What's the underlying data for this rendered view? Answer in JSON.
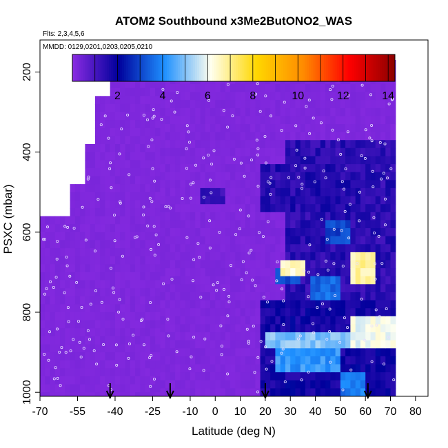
{
  "chart_data": {
    "type": "heatmap",
    "title": "ATOM2 Southbound x3Me2ButONO2_WAS",
    "subtitle_flights": "Flts: 2,3,4,5,6",
    "subtitle_dates": "MMDD: 0129,0201,0203,0205,0210",
    "xlabel": "Latitude (deg N)",
    "ylabel": "PSXC (mbar)",
    "xlim": [
      -70,
      85
    ],
    "ylim": [
      1010,
      120
    ],
    "x_ticks": [
      -70,
      -55,
      -40,
      -25,
      -10,
      0,
      10,
      20,
      30,
      40,
      50,
      60,
      70,
      80
    ],
    "y_ticks": [
      200,
      400,
      600,
      800,
      1000
    ],
    "colorbar": {
      "min": 0,
      "max": 14.3,
      "ticks": [
        2,
        4,
        6,
        8,
        10,
        12,
        14
      ],
      "colors": [
        "#8a2be2",
        "#00009b",
        "#1e90ff",
        "#fffff0",
        "#ffd700",
        "#ff8c00",
        "#ff0000",
        "#8b0000"
      ]
    },
    "arrows_lat": [
      -42,
      -18,
      20,
      61
    ],
    "background_value": 0.1,
    "value_patches": [
      {
        "lat": [
          -5,
          5
        ],
        "p": [
          490,
          540
        ],
        "v": 1.3
      },
      {
        "lat": [
          18,
          72
        ],
        "p": [
          780,
          1010
        ],
        "v": 1.8
      },
      {
        "lat": [
          19,
          60
        ],
        "p": [
          440,
          560
        ],
        "v": 1.5
      },
      {
        "lat": [
          28,
          72
        ],
        "p": [
          380,
          780
        ],
        "v": 1.4
      },
      {
        "lat": [
          26,
          36
        ],
        "p": [
          670,
          720
        ],
        "v": 6.5
      },
      {
        "lat": [
          55,
          65
        ],
        "p": [
          660,
          730
        ],
        "v": 6.8
      },
      {
        "lat": [
          20,
          72
        ],
        "p": [
          850,
          900
        ],
        "v": 5.0
      },
      {
        "lat": [
          25,
          50
        ],
        "p": [
          900,
          960
        ],
        "v": 4.2
      },
      {
        "lat": [
          55,
          72
        ],
        "p": [
          820,
          900
        ],
        "v": 6.0
      },
      {
        "lat": [
          38,
          50
        ],
        "p": [
          720,
          780
        ],
        "v": 3.5
      },
      {
        "lat": [
          44,
          55
        ],
        "p": [
          580,
          640
        ],
        "v": 3.0
      },
      {
        "lat": [
          25,
          35
        ],
        "p": [
          700,
          740
        ],
        "v": 3.2
      },
      {
        "lat": [
          50,
          60
        ],
        "p": [
          960,
          1010
        ],
        "v": 3.8
      }
    ]
  }
}
